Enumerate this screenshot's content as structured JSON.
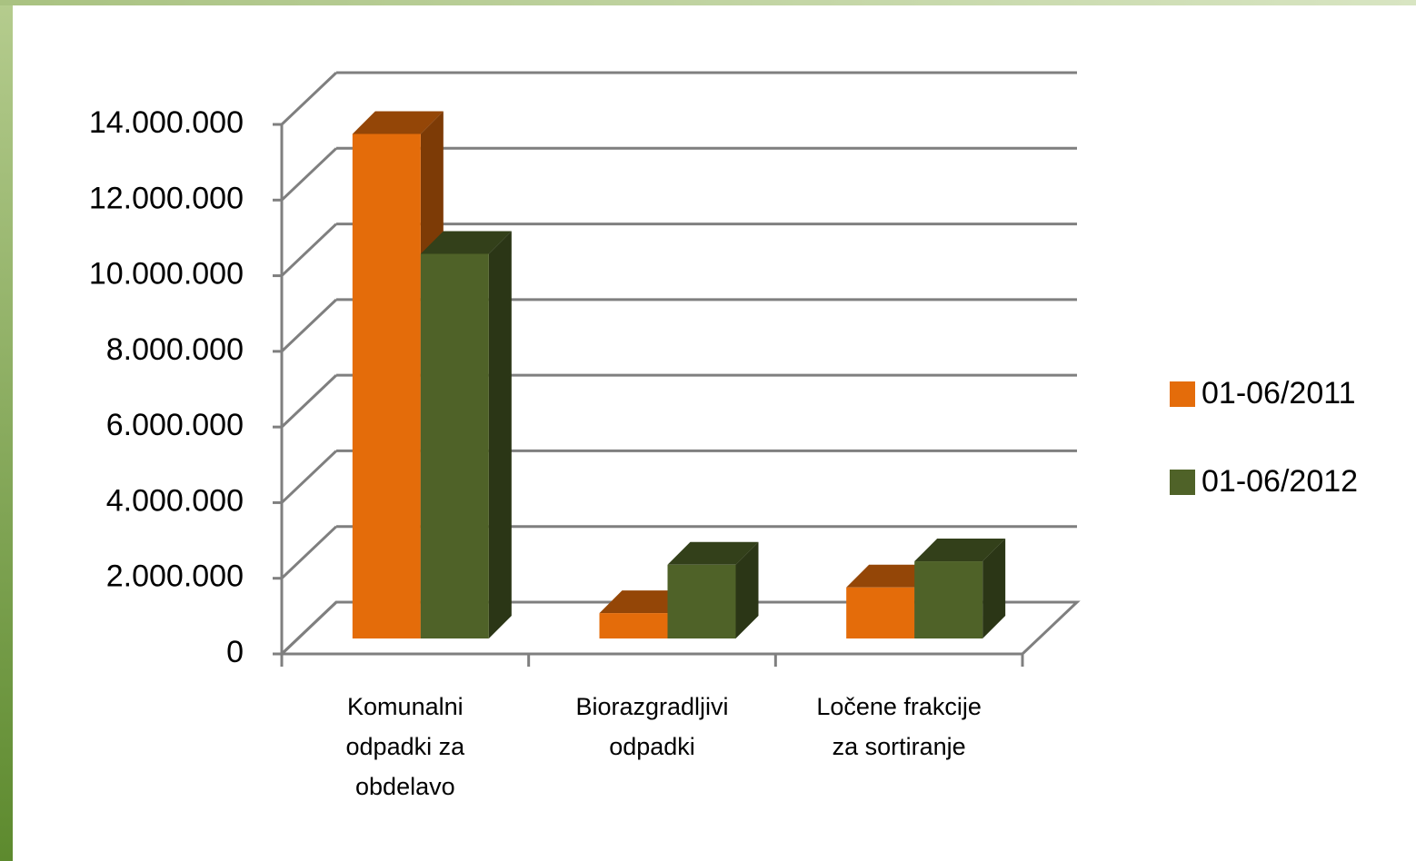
{
  "chart_data": {
    "type": "bar3d",
    "categories": [
      "Komunalni odpadki za obdelavo",
      "Biorazgradljivi odpadki",
      "Ločene frakcije za sortiranje"
    ],
    "series": [
      {
        "name": "01-06/2011",
        "color": "#e46c0a",
        "values": [
          13340000,
          670000,
          1350000
        ]
      },
      {
        "name": "01-06/2012",
        "color": "#4f6228",
        "values": [
          10170000,
          1950000,
          2040000
        ]
      }
    ],
    "ylim": [
      0,
      14000000
    ],
    "yticks": [
      {
        "value": 0,
        "label": "0"
      },
      {
        "value": 2000000,
        "label": "2.000.000"
      },
      {
        "value": 4000000,
        "label": "4.000.000"
      },
      {
        "value": 6000000,
        "label": "6.000.000"
      },
      {
        "value": 8000000,
        "label": "8.000.000"
      },
      {
        "value": 10000000,
        "label": "10.000.000"
      },
      {
        "value": 12000000,
        "label": "12.000.000"
      },
      {
        "value": 14000000,
        "label": "14.000.000"
      }
    ],
    "grid": true,
    "legend": "right"
  }
}
